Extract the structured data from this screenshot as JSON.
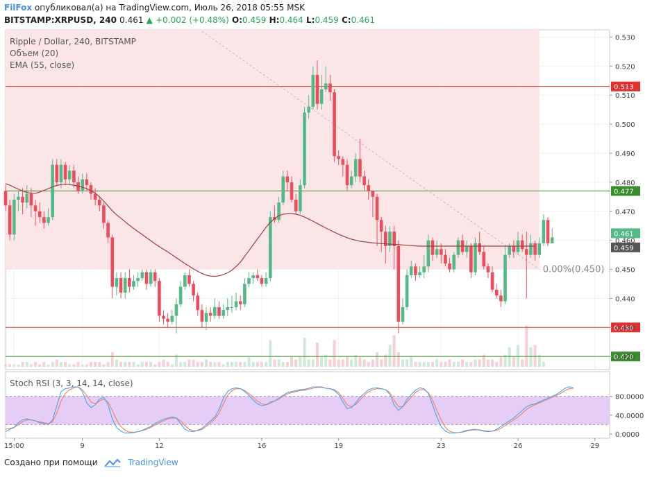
{
  "header": {
    "author": "FilFox",
    "published_text": "опубликовал(а) на TradingView.com, Июль 26, 2018 05:55 MSK",
    "symbol": "BITSTAMP:XRPUSD, 240",
    "last": "0.461",
    "change": "+0.002 (+0.48%)",
    "o_label": "O:",
    "o_value": "0.459",
    "h_label": "H:",
    "h_value": "0.464",
    "l_label": "L:",
    "l_value": "0.459",
    "c_label": "C:",
    "c_value": "0.461"
  },
  "legend": {
    "title": "Ripple / Dollar, 240, BITSTAMP",
    "volume": "Объем (20)",
    "ema": "EMA (55, close)",
    "rsi": "Stoch RSI (3, 3, 14, 14, close)"
  },
  "footer": {
    "created_with": "Создано при помощи",
    "brand": "TradingView"
  },
  "colors": {
    "up": "#53b987",
    "down": "#eb4d5c",
    "ema": "#a03c3c",
    "zone": "#fbe5e7",
    "rsi_band": "#e6cdf6",
    "red_line": "#e03030",
    "green_line": "#3b8b2f",
    "stoch_k": "#4aa3e8",
    "stoch_d": "#f08060"
  },
  "chart_data": {
    "type": "candlestick",
    "title": "Ripple / Dollar, 240, BITSTAMP",
    "y_ticks": [
      "0.530",
      "0.520",
      "0.510",
      "0.500",
      "0.490",
      "0.480",
      "0.470",
      "0.460",
      "0.450",
      "0.440",
      "0.430",
      "0.420"
    ],
    "ylim": [
      0.4155,
      0.5325
    ],
    "x_ticks": [
      "15:00",
      "9",
      "12",
      "16",
      "19",
      "23",
      "26",
      "29"
    ],
    "x_tick_bars": [
      2,
      18,
      36,
      60,
      78,
      102,
      120,
      138
    ],
    "horizontal_lines": [
      {
        "value": 0.513,
        "label": "0.513",
        "color": "red"
      },
      {
        "value": 0.477,
        "label": "0.477",
        "color": "green"
      },
      {
        "value": 0.43,
        "label": "0.430",
        "color": "red"
      },
      {
        "value": 0.42,
        "label": "0.420",
        "color": "green"
      }
    ],
    "price_badges": [
      {
        "value": 0.461,
        "label": "0.461"
      },
      {
        "value": 0.459,
        "label": "0.459"
      }
    ],
    "fib_label": "0.00%(0.450)",
    "fib_level": 0.45,
    "trendline": {
      "from": [
        46,
        0.532
      ],
      "to": [
        125,
        0.45
      ]
    },
    "candles": [
      [
        0.477,
        0.472,
        0.479,
        0.47
      ],
      [
        0.472,
        0.462,
        0.474,
        0.46
      ],
      [
        0.462,
        0.474,
        0.476,
        0.46
      ],
      [
        0.474,
        0.475,
        0.477,
        0.47
      ],
      [
        0.475,
        0.473,
        0.478,
        0.469
      ],
      [
        0.473,
        0.476,
        0.479,
        0.471
      ],
      [
        0.476,
        0.472,
        0.478,
        0.468
      ],
      [
        0.472,
        0.47,
        0.474,
        0.465
      ],
      [
        0.47,
        0.468,
        0.473,
        0.466
      ],
      [
        0.468,
        0.466,
        0.47,
        0.464
      ],
      [
        0.466,
        0.468,
        0.471,
        0.465
      ],
      [
        0.468,
        0.486,
        0.488,
        0.467
      ],
      [
        0.486,
        0.48,
        0.488,
        0.479
      ],
      [
        0.48,
        0.486,
        0.488,
        0.478
      ],
      [
        0.486,
        0.481,
        0.487,
        0.479
      ],
      [
        0.481,
        0.484,
        0.486,
        0.479
      ],
      [
        0.484,
        0.48,
        0.486,
        0.478
      ],
      [
        0.48,
        0.477,
        0.482,
        0.476
      ],
      [
        0.477,
        0.481,
        0.483,
        0.476
      ],
      [
        0.481,
        0.479,
        0.483,
        0.477
      ],
      [
        0.479,
        0.476,
        0.48,
        0.474
      ],
      [
        0.476,
        0.474,
        0.478,
        0.472
      ],
      [
        0.474,
        0.472,
        0.475,
        0.47
      ],
      [
        0.472,
        0.466,
        0.473,
        0.464
      ],
      [
        0.466,
        0.461,
        0.467,
        0.459
      ],
      [
        0.461,
        0.444,
        0.462,
        0.44
      ],
      [
        0.444,
        0.447,
        0.449,
        0.441
      ],
      [
        0.447,
        0.442,
        0.449,
        0.44
      ],
      [
        0.442,
        0.447,
        0.449,
        0.44
      ],
      [
        0.447,
        0.444,
        0.45,
        0.442
      ],
      [
        0.444,
        0.446,
        0.448,
        0.443
      ],
      [
        0.446,
        0.447,
        0.449,
        0.444
      ],
      [
        0.447,
        0.449,
        0.45,
        0.446
      ],
      [
        0.449,
        0.445,
        0.45,
        0.443
      ],
      [
        0.445,
        0.449,
        0.45,
        0.444
      ],
      [
        0.449,
        0.446,
        0.45,
        0.444
      ],
      [
        0.446,
        0.434,
        0.447,
        0.432
      ],
      [
        0.434,
        0.433,
        0.436,
        0.431
      ],
      [
        0.433,
        0.432,
        0.435,
        0.43
      ],
      [
        0.432,
        0.434,
        0.436,
        0.431
      ],
      [
        0.434,
        0.438,
        0.44,
        0.428
      ],
      [
        0.438,
        0.444,
        0.446,
        0.437
      ],
      [
        0.444,
        0.448,
        0.449,
        0.443
      ],
      [
        0.448,
        0.445,
        0.45,
        0.444
      ],
      [
        0.445,
        0.441,
        0.446,
        0.439
      ],
      [
        0.441,
        0.436,
        0.442,
        0.434
      ],
      [
        0.436,
        0.432,
        0.438,
        0.43
      ],
      [
        0.432,
        0.435,
        0.437,
        0.429
      ],
      [
        0.435,
        0.434,
        0.437,
        0.432
      ],
      [
        0.434,
        0.437,
        0.44,
        0.433
      ],
      [
        0.437,
        0.434,
        0.439,
        0.433
      ],
      [
        0.434,
        0.436,
        0.438,
        0.433
      ],
      [
        0.436,
        0.437,
        0.44,
        0.434
      ],
      [
        0.437,
        0.437,
        0.441,
        0.435
      ],
      [
        0.437,
        0.439,
        0.442,
        0.436
      ],
      [
        0.439,
        0.438,
        0.441,
        0.436
      ],
      [
        0.438,
        0.445,
        0.447,
        0.437
      ],
      [
        0.445,
        0.447,
        0.449,
        0.444
      ],
      [
        0.447,
        0.448,
        0.449,
        0.445
      ],
      [
        0.448,
        0.447,
        0.45,
        0.446
      ],
      [
        0.447,
        0.445,
        0.448,
        0.444
      ],
      [
        0.445,
        0.447,
        0.449,
        0.444
      ],
      [
        0.447,
        0.468,
        0.47,
        0.446
      ],
      [
        0.468,
        0.467,
        0.472,
        0.466
      ],
      [
        0.467,
        0.473,
        0.475,
        0.466
      ],
      [
        0.473,
        0.482,
        0.484,
        0.472
      ],
      [
        0.482,
        0.48,
        0.484,
        0.477
      ],
      [
        0.48,
        0.474,
        0.482,
        0.473
      ],
      [
        0.474,
        0.47,
        0.476,
        0.469
      ],
      [
        0.47,
        0.479,
        0.481,
        0.469
      ],
      [
        0.479,
        0.504,
        0.506,
        0.478
      ],
      [
        0.504,
        0.506,
        0.51,
        0.502
      ],
      [
        0.506,
        0.517,
        0.52,
        0.505
      ],
      [
        0.517,
        0.507,
        0.522,
        0.505
      ],
      [
        0.507,
        0.512,
        0.517,
        0.505
      ],
      [
        0.512,
        0.514,
        0.52,
        0.511
      ],
      [
        0.514,
        0.511,
        0.517,
        0.508
      ],
      [
        0.511,
        0.489,
        0.512,
        0.487
      ],
      [
        0.489,
        0.488,
        0.491,
        0.486
      ],
      [
        0.488,
        0.486,
        0.489,
        0.482
      ],
      [
        0.486,
        0.479,
        0.488,
        0.477
      ],
      [
        0.479,
        0.482,
        0.484,
        0.478
      ],
      [
        0.482,
        0.488,
        0.49,
        0.48
      ],
      [
        0.488,
        0.482,
        0.495,
        0.48
      ],
      [
        0.482,
        0.479,
        0.484,
        0.477
      ],
      [
        0.479,
        0.477,
        0.481,
        0.474
      ],
      [
        0.477,
        0.475,
        0.477,
        0.468
      ],
      [
        0.475,
        0.467,
        0.476,
        0.458
      ],
      [
        0.467,
        0.463,
        0.468,
        0.456
      ],
      [
        0.463,
        0.458,
        0.465,
        0.452
      ],
      [
        0.458,
        0.463,
        0.465,
        0.456
      ],
      [
        0.463,
        0.458,
        0.465,
        0.45
      ],
      [
        0.458,
        0.432,
        0.46,
        0.428
      ],
      [
        0.432,
        0.437,
        0.44,
        0.431
      ],
      [
        0.437,
        0.448,
        0.45,
        0.436
      ],
      [
        0.448,
        0.451,
        0.453,
        0.447
      ],
      [
        0.451,
        0.448,
        0.452,
        0.446
      ],
      [
        0.448,
        0.449,
        0.451,
        0.447
      ],
      [
        0.449,
        0.451,
        0.455,
        0.447
      ],
      [
        0.451,
        0.46,
        0.462,
        0.449
      ],
      [
        0.46,
        0.455,
        0.461,
        0.453
      ],
      [
        0.455,
        0.457,
        0.46,
        0.454
      ],
      [
        0.457,
        0.455,
        0.459,
        0.452
      ],
      [
        0.455,
        0.452,
        0.457,
        0.451
      ],
      [
        0.452,
        0.45,
        0.454,
        0.449
      ],
      [
        0.45,
        0.455,
        0.456,
        0.449
      ],
      [
        0.455,
        0.46,
        0.461,
        0.454
      ],
      [
        0.46,
        0.456,
        0.462,
        0.455
      ],
      [
        0.456,
        0.458,
        0.46,
        0.454
      ],
      [
        0.458,
        0.449,
        0.459,
        0.447
      ],
      [
        0.449,
        0.459,
        0.461,
        0.448
      ],
      [
        0.459,
        0.456,
        0.463,
        0.455
      ],
      [
        0.456,
        0.451,
        0.458,
        0.45
      ],
      [
        0.451,
        0.449,
        0.452,
        0.447
      ],
      [
        0.449,
        0.443,
        0.451,
        0.442
      ],
      [
        0.443,
        0.441,
        0.445,
        0.44
      ],
      [
        0.441,
        0.439,
        0.443,
        0.437
      ],
      [
        0.439,
        0.455,
        0.458,
        0.438
      ],
      [
        0.455,
        0.458,
        0.459,
        0.454
      ],
      [
        0.458,
        0.456,
        0.46,
        0.454
      ],
      [
        0.456,
        0.46,
        0.463,
        0.455
      ],
      [
        0.46,
        0.457,
        0.462,
        0.456
      ],
      [
        0.457,
        0.455,
        0.463,
        0.44
      ],
      [
        0.455,
        0.459,
        0.462,
        0.454
      ],
      [
        0.459,
        0.455,
        0.46,
        0.453
      ],
      [
        0.455,
        0.459,
        0.461,
        0.454
      ],
      [
        0.459,
        0.467,
        0.469,
        0.458
      ],
      [
        0.467,
        0.459,
        0.468,
        0.458
      ],
      [
        0.459,
        0.461,
        0.464,
        0.459
      ]
    ],
    "ema": [
      0.4795,
      0.479,
      0.4783,
      0.4776,
      0.477,
      0.4765,
      0.4762,
      0.4762,
      0.4766,
      0.4772,
      0.4778,
      0.4784,
      0.4789,
      0.4792,
      0.4793,
      0.4792,
      0.479,
      0.4787,
      0.4783,
      0.4778,
      0.4771,
      0.4762,
      0.475,
      0.4735,
      0.4718,
      0.4702,
      0.4688,
      0.4676,
      0.4664,
      0.4652,
      0.4641,
      0.463,
      0.462,
      0.4609,
      0.4599,
      0.4588,
      0.4578,
      0.4569,
      0.456,
      0.455,
      0.454,
      0.453,
      0.452,
      0.4511,
      0.4502,
      0.4493,
      0.4486,
      0.448,
      0.4477,
      0.4476,
      0.4478,
      0.4482,
      0.4488,
      0.4497,
      0.451,
      0.4525,
      0.4545,
      0.4565,
      0.4585,
      0.4605,
      0.4625,
      0.4645,
      0.4662,
      0.4675,
      0.4685,
      0.469,
      0.4692,
      0.4692,
      0.469,
      0.4686,
      0.468,
      0.4673,
      0.4666,
      0.4658,
      0.465,
      0.4642,
      0.4635,
      0.4628,
      0.4621,
      0.4615,
      0.4609,
      0.4604,
      0.46,
      0.4597,
      0.4595,
      0.4593,
      0.4591,
      0.459,
      0.4589,
      0.4588,
      0.4587,
      0.4586,
      0.4585,
      0.4584,
      0.4583,
      0.4582,
      0.4581,
      0.458,
      0.458,
      0.458,
      0.458,
      0.458,
      0.458,
      0.458,
      0.458,
      0.458,
      0.458,
      0.458,
      0.458,
      0.458,
      0.458,
      0.458,
      0.458,
      0.458,
      0.458,
      0.458,
      0.458,
      0.458,
      0.458,
      0.458,
      0.458,
      0.458,
      0.458,
      0.458,
      0.458
    ],
    "volume": [
      1,
      1,
      1,
      1,
      2,
      2,
      1,
      2,
      1,
      2,
      1,
      2,
      3,
      2,
      2,
      1,
      1,
      2,
      1,
      1,
      2,
      2,
      2,
      1,
      2,
      6,
      3,
      2,
      2,
      2,
      2,
      1,
      2,
      2,
      2,
      1,
      2,
      3,
      2,
      1,
      5,
      2,
      2,
      3,
      3,
      2,
      2,
      3,
      2,
      2,
      2,
      1,
      2,
      2,
      2,
      2,
      2,
      4,
      2,
      2,
      2,
      2,
      11,
      3,
      3,
      2,
      2,
      4,
      3,
      4,
      12,
      3,
      3,
      10,
      4,
      5,
      3,
      11,
      3,
      3,
      4,
      3,
      5,
      4,
      3,
      2,
      3,
      6,
      3,
      5,
      9,
      13,
      6,
      3,
      3,
      4,
      2,
      2,
      2,
      2,
      2,
      3,
      2,
      2,
      3,
      2,
      2,
      3,
      2,
      2,
      3,
      3,
      5,
      3,
      3,
      2,
      4,
      5,
      8,
      4,
      9,
      3,
      17,
      8,
      9,
      5,
      2
    ],
    "volume_max": 20,
    "stoch_rsi": {
      "ticks": [
        "80.0000",
        "40.0000",
        "0.0000"
      ],
      "band": [
        20,
        80
      ],
      "k": [
        5,
        10,
        14,
        24,
        30,
        32,
        30,
        28,
        24,
        22,
        20,
        30,
        60,
        90,
        96,
        98,
        100,
        100,
        90,
        66,
        56,
        62,
        74,
        78,
        62,
        32,
        14,
        6,
        2,
        2,
        3,
        5,
        8,
        12,
        16,
        22,
        27,
        31,
        34,
        36,
        34,
        22,
        10,
        6,
        5,
        8,
        12,
        20,
        28,
        36,
        52,
        76,
        90,
        96,
        98,
        96,
        90,
        82,
        72,
        64,
        60,
        62,
        68,
        70,
        76,
        82,
        88,
        90,
        92,
        94,
        95,
        97,
        100,
        100,
        100,
        97,
        96,
        92,
        84,
        68,
        54,
        56,
        66,
        78,
        86,
        94,
        97,
        98,
        96,
        94,
        84,
        62,
        50,
        58,
        74,
        84,
        93,
        98,
        96,
        86,
        62,
        36,
        16,
        6,
        2,
        2,
        3,
        5,
        8,
        9,
        10,
        8,
        6,
        5,
        6,
        10,
        16,
        22,
        28,
        34,
        42,
        50,
        58,
        62,
        64,
        68,
        72,
        76,
        80,
        84,
        90,
        97,
        100,
        98
      ],
      "d": [
        10,
        12,
        14,
        20,
        26,
        30,
        30,
        28,
        26,
        24,
        22,
        26,
        44,
        70,
        86,
        94,
        98,
        100,
        94,
        82,
        68,
        64,
        70,
        74,
        68,
        50,
        30,
        16,
        8,
        4,
        4,
        5,
        7,
        10,
        14,
        19,
        24,
        28,
        32,
        34,
        34,
        28,
        18,
        10,
        7,
        7,
        10,
        16,
        24,
        32,
        44,
        64,
        82,
        92,
        96,
        96,
        92,
        86,
        78,
        70,
        64,
        62,
        65,
        70,
        74,
        80,
        85,
        88,
        90,
        92,
        93,
        95,
        97,
        99,
        99,
        97,
        96,
        94,
        88,
        76,
        62,
        58,
        63,
        72,
        82,
        90,
        94,
        96,
        96,
        94,
        88,
        72,
        58,
        58,
        68,
        78,
        88,
        94,
        94,
        88,
        72,
        50,
        30,
        14,
        6,
        3,
        3,
        4,
        6,
        8,
        9,
        9,
        7,
        6,
        6,
        8,
        12,
        18,
        24,
        30,
        36,
        44,
        52,
        58,
        62,
        66,
        70,
        74,
        78,
        82,
        86,
        92,
        96,
        97
      ]
    }
  }
}
